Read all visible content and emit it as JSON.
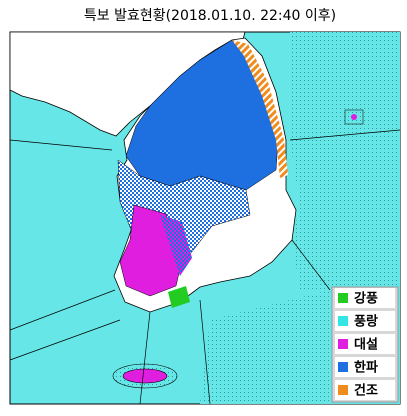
{
  "title": "특보 발효현황(2018.01.10. 22:40 이후)",
  "legend": [
    {
      "label": "강풍",
      "color": "#22cc22"
    },
    {
      "label": "풍랑",
      "color": "#33e6e6"
    },
    {
      "label": "대설",
      "color": "#e01ee0"
    },
    {
      "label": "한파",
      "color": "#1e6fe0"
    },
    {
      "label": "건조",
      "color": "#f08c1e"
    }
  ]
}
